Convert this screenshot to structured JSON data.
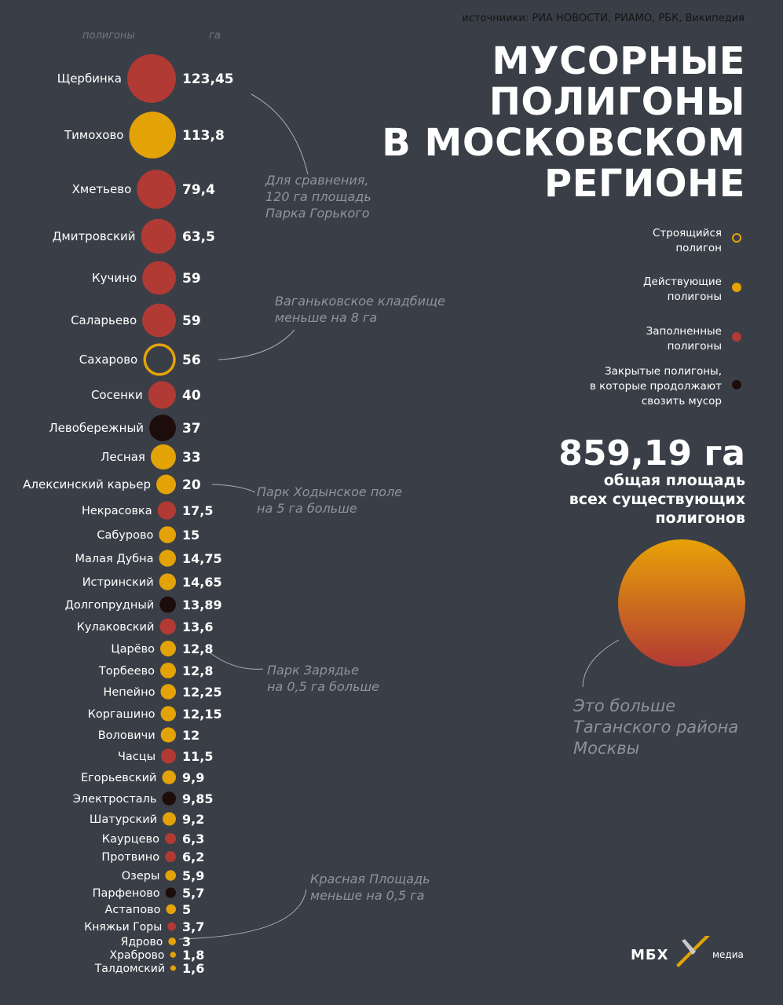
{
  "source": "источниики: РИА НОВОСТИ, РИАМО, РБК, Википедия",
  "column_headers": {
    "name": "полигоны",
    "value": "га"
  },
  "title_lines": [
    "МУСОРНЫЕ",
    "ПОЛИГОНЫ",
    "В МОСКОВСКОМ",
    "РЕГИОНЕ"
  ],
  "legend": [
    {
      "label_lines": [
        "Строящийся",
        "полигон"
      ],
      "status": "building",
      "color": "#e3a307"
    },
    {
      "label_lines": [
        "Действующие",
        "полигоны"
      ],
      "status": "active",
      "color": "#e3a307"
    },
    {
      "label_lines": [
        "Заполненные",
        "полигоны"
      ],
      "status": "filled",
      "color": "#b13a34"
    },
    {
      "label_lines": [
        "Закрытые полигоны,",
        "в которые продолжают",
        "свозить мусор"
      ],
      "status": "closed",
      "color": "#1c0d0b"
    }
  ],
  "total": {
    "value": "859,19 га",
    "description_lines": [
      "общая площадь",
      "всех существующих",
      "полигонов"
    ],
    "comparison_lines": [
      "Это больше",
      "Таганского района",
      "Москвы"
    ]
  },
  "annotations": [
    {
      "lines": [
        "Для сравнения,",
        "120 га площадь",
        "Парка Горького"
      ]
    },
    {
      "lines": [
        "Ваганьковское кладбище",
        "меньше на 8 га"
      ]
    },
    {
      "lines": [
        "Парк Ходынское поле",
        "на 5 га больше"
      ]
    },
    {
      "lines": [
        "Парк Зарядье",
        "на 0,5 га больше"
      ]
    },
    {
      "lines": [
        "Красная Площадь",
        "меньше на 0,5 га"
      ]
    }
  ],
  "logo": {
    "text": "МБХ",
    "suffix": "медиа"
  },
  "colors": {
    "background": "#3a3f47",
    "active": "#e3a307",
    "filled": "#b13a34",
    "closed": "#1c0d0b",
    "annotation": "#8d949d"
  },
  "chart_data": {
    "type": "bubble",
    "unit": "га",
    "series": [
      {
        "name": "Щербинка",
        "value": 123.45,
        "label": "123,45",
        "status": "filled"
      },
      {
        "name": "Тимохово",
        "value": 113.8,
        "label": "113,8",
        "status": "active"
      },
      {
        "name": "Хметьево",
        "value": 79.4,
        "label": "79,4",
        "status": "filled"
      },
      {
        "name": "Дмитровский",
        "value": 63.5,
        "label": "63,5",
        "status": "filled"
      },
      {
        "name": "Кучино",
        "value": 59,
        "label": "59",
        "status": "filled"
      },
      {
        "name": "Саларьево",
        "value": 59,
        "label": "59",
        "status": "filled"
      },
      {
        "name": "Сахарово",
        "value": 56,
        "label": "56",
        "status": "building"
      },
      {
        "name": "Сосенки",
        "value": 40,
        "label": "40",
        "status": "filled"
      },
      {
        "name": "Левобережный",
        "value": 37,
        "label": "37",
        "status": "closed"
      },
      {
        "name": "Лесная",
        "value": 33,
        "label": "33",
        "status": "active"
      },
      {
        "name": "Алексинский карьер",
        "value": 20,
        "label": "20",
        "status": "active"
      },
      {
        "name": "Некрасовка",
        "value": 17.5,
        "label": "17,5",
        "status": "filled"
      },
      {
        "name": "Сабурово",
        "value": 15,
        "label": "15",
        "status": "active"
      },
      {
        "name": "Малая Дубна",
        "value": 14.75,
        "label": "14,75",
        "status": "active"
      },
      {
        "name": "Истринский",
        "value": 14.65,
        "label": "14,65",
        "status": "active"
      },
      {
        "name": "Долгопрудный",
        "value": 13.89,
        "label": "13,89",
        "status": "closed"
      },
      {
        "name": "Кулаковский",
        "value": 13.6,
        "label": "13,6",
        "status": "filled"
      },
      {
        "name": "Царёво",
        "value": 12.8,
        "label": "12,8",
        "status": "active"
      },
      {
        "name": "Торбеево",
        "value": 12.8,
        "label": "12,8",
        "status": "active"
      },
      {
        "name": "Непейно",
        "value": 12.25,
        "label": "12,25",
        "status": "active"
      },
      {
        "name": "Коргашино",
        "value": 12.15,
        "label": "12,15",
        "status": "active"
      },
      {
        "name": "Воловичи",
        "value": 12,
        "label": "12",
        "status": "active"
      },
      {
        "name": "Часцы",
        "value": 11.5,
        "label": "11,5",
        "status": "filled"
      },
      {
        "name": "Егорьевский",
        "value": 9.9,
        "label": "9,9",
        "status": "active"
      },
      {
        "name": "Электросталь",
        "value": 9.85,
        "label": "9,85",
        "status": "closed"
      },
      {
        "name": "Шатурский",
        "value": 9.2,
        "label": "9,2",
        "status": "active"
      },
      {
        "name": "Каурцево",
        "value": 6.3,
        "label": "6,3",
        "status": "filled"
      },
      {
        "name": "Протвино",
        "value": 6.2,
        "label": "6,2",
        "status": "filled"
      },
      {
        "name": "Озеры",
        "value": 5.9,
        "label": "5,9",
        "status": "active"
      },
      {
        "name": "Парфеново",
        "value": 5.7,
        "label": "5,7",
        "status": "closed"
      },
      {
        "name": "Астапово",
        "value": 5,
        "label": "5",
        "status": "active"
      },
      {
        "name": "Княжьи Горы",
        "value": 3.7,
        "label": "3,7",
        "status": "filled"
      },
      {
        "name": "Ядрово",
        "value": 3,
        "label": "3",
        "status": "active"
      },
      {
        "name": "Храброво",
        "value": 1.8,
        "label": "1,8",
        "status": "active"
      },
      {
        "name": "Талдомский",
        "value": 1.6,
        "label": "1,6",
        "status": "active"
      }
    ],
    "total": {
      "value": 859.19,
      "label": "859,19 га"
    }
  }
}
